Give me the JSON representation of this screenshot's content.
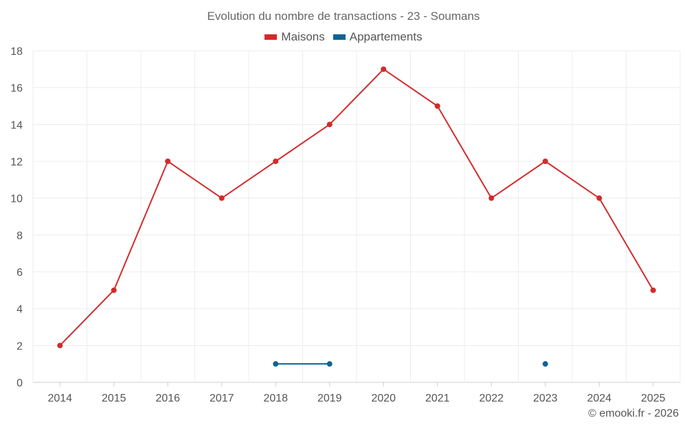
{
  "chart_data": {
    "type": "line",
    "title": "Evolution du nombre de transactions - 23 - Soumans",
    "categories": [
      "2014",
      "2015",
      "2016",
      "2017",
      "2018",
      "2019",
      "2020",
      "2021",
      "2022",
      "2023",
      "2024",
      "2025"
    ],
    "series": [
      {
        "name": "Maisons",
        "color": "#d32a2a",
        "values": [
          2,
          5,
          12,
          10,
          12,
          14,
          17,
          15,
          10,
          12,
          10,
          5
        ]
      },
      {
        "name": "Appartements",
        "color": "#0b6496",
        "values": [
          null,
          null,
          null,
          null,
          1,
          1,
          null,
          null,
          null,
          1,
          null,
          null
        ]
      }
    ],
    "ylim": [
      0,
      18
    ],
    "yticks": [
      0,
      2,
      4,
      6,
      8,
      10,
      12,
      14,
      16,
      18
    ],
    "grid": true,
    "legend_position": "top-center",
    "xlabel": "",
    "ylabel": ""
  },
  "credit": "© emooki.fr - 2026"
}
